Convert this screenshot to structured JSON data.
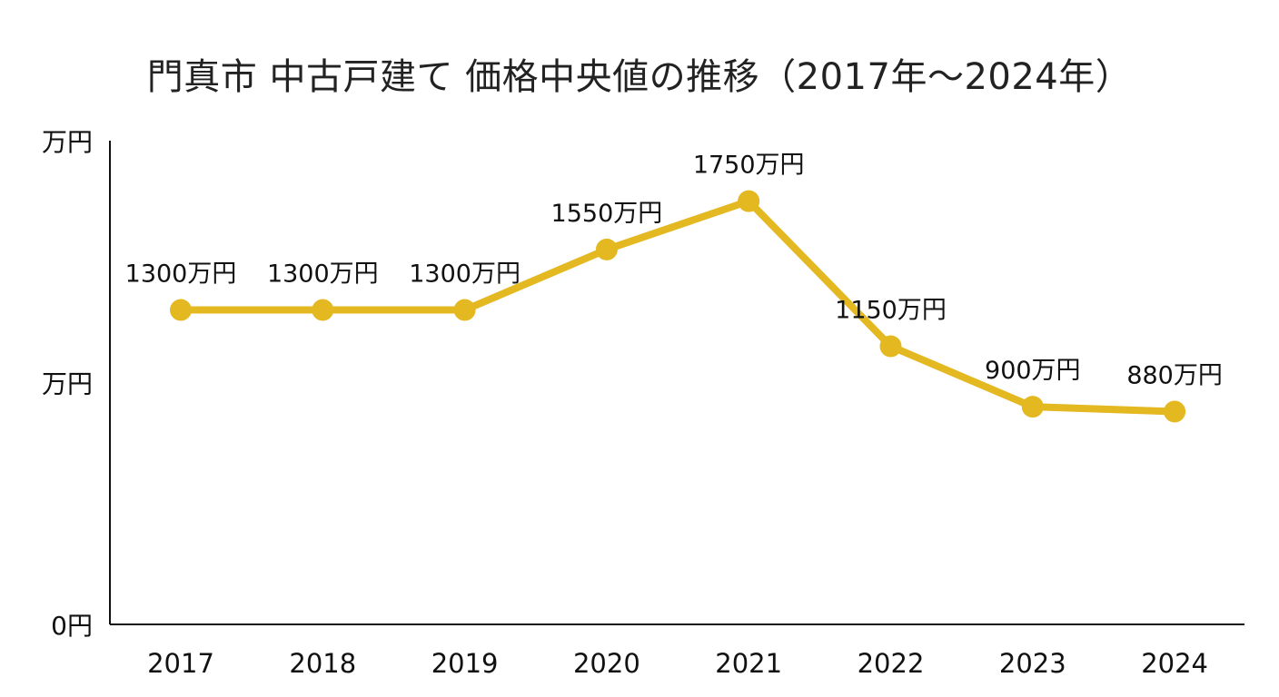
{
  "chart_data": {
    "type": "line",
    "title": "門真市 中古戸建て 価格中央値の推移（2017年〜2024年）",
    "xlabel": "",
    "ylabel": "",
    "categories": [
      "2017",
      "2018",
      "2019",
      "2020",
      "2021",
      "2022",
      "2023",
      "2024"
    ],
    "series": [
      {
        "values": [
          1300,
          1300,
          1300,
          1550,
          1750,
          1150,
          900,
          880
        ],
        "data_labels": [
          "1300万円",
          "1300万円",
          "1300万円",
          "1550万円",
          "1750万円",
          "1150万円",
          "900万円",
          "880万円"
        ],
        "color": "#E3B821"
      }
    ],
    "ylim": [
      0,
      2000
    ],
    "y_ticks": [
      {
        "value": 0,
        "label": "0円"
      },
      {
        "value": 1000,
        "label": "万円"
      },
      {
        "value": 2000,
        "label": "万円"
      }
    ],
    "grid": false,
    "legend": "none"
  }
}
